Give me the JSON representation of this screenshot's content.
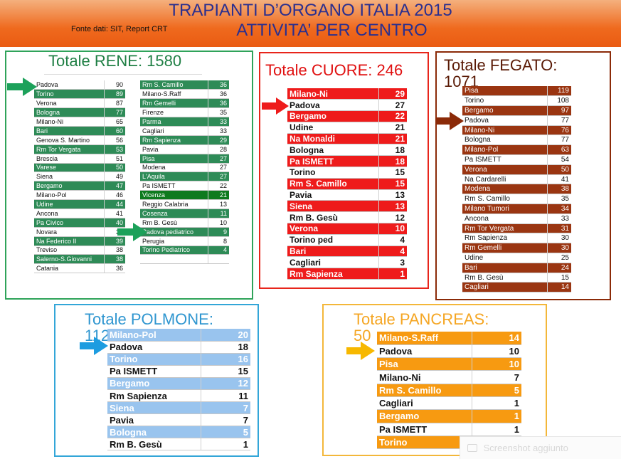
{
  "header": {
    "title_line1": "TRAPIANTI D’ORGANO ITALIA 2015",
    "title_line2": "ATTIVITA’ PER CENTRO",
    "source": "Fonte dati: SIT, Report CRT"
  },
  "colors": {
    "rene_frame": "#2fa35a",
    "rene_row": "#2e8b57",
    "cuore_frame": "#e8251b",
    "cuore_row": "#ee1b1b",
    "fegato_frame": "#8b2a08",
    "fegato_row": "#9a3511",
    "polmone_frame": "#33a6d8",
    "polmone_row": "#99c4ee",
    "pancreas_frame": "#f3b73a",
    "pancreas_row": "#f79a11"
  },
  "rene": {
    "title": "Totale RENE: 1580",
    "col1": [
      {
        "name": "Padova",
        "value": "90",
        "hl": false
      },
      {
        "name": "Torino",
        "value": "89",
        "hl": true
      },
      {
        "name": "Verona",
        "value": "87",
        "hl": false
      },
      {
        "name": "Bologna",
        "value": "77",
        "hl": true
      },
      {
        "name": "Milano-Ni",
        "value": "65",
        "hl": false
      },
      {
        "name": "Bari",
        "value": "60",
        "hl": true
      },
      {
        "name": "Genova S. Martino",
        "value": "56",
        "hl": false
      },
      {
        "name": "Rm Tor Vergata",
        "value": "53",
        "hl": true
      },
      {
        "name": "Brescia",
        "value": "51",
        "hl": false
      },
      {
        "name": "Varese",
        "value": "50",
        "hl": true
      },
      {
        "name": "Siena",
        "value": "49",
        "hl": false
      },
      {
        "name": "Bergamo",
        "value": "47",
        "hl": true
      },
      {
        "name": "Milano-Pol",
        "value": "46",
        "hl": false
      },
      {
        "name": "Udine",
        "value": "44",
        "hl": true
      },
      {
        "name": "Ancona",
        "value": "41",
        "hl": false
      },
      {
        "name": "Pa Civico",
        "value": "40",
        "hl": true
      },
      {
        "name": "Novara",
        "value": "39",
        "hl": false
      },
      {
        "name": "Na Federico II",
        "value": "39",
        "hl": true
      },
      {
        "name": "Treviso",
        "value": "38",
        "hl": false
      },
      {
        "name": "Salerno-S.Giovanni",
        "value": "38",
        "hl": true
      },
      {
        "name": "Catania",
        "value": "36",
        "hl": false
      }
    ],
    "col2": [
      {
        "name": "Rm S. Camillo",
        "value": "36",
        "hl": true
      },
      {
        "name": "Milano-S.Raff",
        "value": "36",
        "hl": false
      },
      {
        "name": "Rm Gemelli",
        "value": "36",
        "hl": true
      },
      {
        "name": "Firenze",
        "value": "35",
        "hl": false
      },
      {
        "name": "Parma",
        "value": "33",
        "hl": true
      },
      {
        "name": "Cagliari",
        "value": "33",
        "hl": false
      },
      {
        "name": "Rm Sapienza",
        "value": "29",
        "hl": true
      },
      {
        "name": "Pavia",
        "value": "28",
        "hl": false
      },
      {
        "name": "Pisa",
        "value": "27",
        "hl": true
      },
      {
        "name": "Modena",
        "value": "27",
        "hl": false
      },
      {
        "name": "L'Aquila",
        "value": "27",
        "hl": true
      },
      {
        "name": "Pa ISMETT",
        "value": "22",
        "hl": false
      },
      {
        "name": "Vicenza",
        "value": "21",
        "hl": true
      },
      {
        "name": "Reggio Calabria",
        "value": "13",
        "hl": false
      },
      {
        "name": "Cosenza",
        "value": "11",
        "hl": true
      },
      {
        "name": "Rm B. Gesù",
        "value": "10",
        "hl": false
      },
      {
        "name": "Padova pediatrico",
        "value": "9",
        "hl": true
      },
      {
        "name": "Perugia",
        "value": "8",
        "hl": false
      },
      {
        "name": "Torino Pediatrico",
        "value": "4",
        "hl": true
      },
      {
        "name": "",
        "value": "",
        "hl": false
      }
    ]
  },
  "cuore": {
    "title": "Totale CUORE: 246",
    "rows": [
      {
        "name": "Milano-Ni",
        "value": "29",
        "hl": true
      },
      {
        "name": "Padova",
        "value": "27",
        "hl": false
      },
      {
        "name": "Bergamo",
        "value": "22",
        "hl": true
      },
      {
        "name": "Udine",
        "value": "21",
        "hl": false
      },
      {
        "name": "Na Monaldi",
        "value": "21",
        "hl": true
      },
      {
        "name": "Bologna",
        "value": "18",
        "hl": false
      },
      {
        "name": "Pa ISMETT",
        "value": "18",
        "hl": true
      },
      {
        "name": "Torino",
        "value": "15",
        "hl": false
      },
      {
        "name": "Rm S. Camillo",
        "value": "15",
        "hl": true
      },
      {
        "name": "Pavia",
        "value": "13",
        "hl": false
      },
      {
        "name": "Siena",
        "value": "13",
        "hl": true
      },
      {
        "name": "Rm B. Gesù",
        "value": "12",
        "hl": false
      },
      {
        "name": "Verona",
        "value": "10",
        "hl": true
      },
      {
        "name": "Torino ped",
        "value": "4",
        "hl": false
      },
      {
        "name": "Bari",
        "value": "4",
        "hl": true
      },
      {
        "name": "Cagliari",
        "value": "3",
        "hl": false
      },
      {
        "name": "Rm Sapienza",
        "value": "1",
        "hl": true
      }
    ]
  },
  "fegato": {
    "title_line1": "Totale FEGATO:",
    "title_line2": "1071",
    "rows": [
      {
        "name": "Pisa",
        "value": "119",
        "hl": true
      },
      {
        "name": "Torino",
        "value": "108",
        "hl": false
      },
      {
        "name": "Bergamo",
        "value": "97",
        "hl": true
      },
      {
        "name": "Padova",
        "value": "77",
        "hl": false
      },
      {
        "name": "Milano-Ni",
        "value": "76",
        "hl": true
      },
      {
        "name": "Bologna",
        "value": "77",
        "hl": false
      },
      {
        "name": "Milano-Pol",
        "value": "63",
        "hl": true
      },
      {
        "name": "Pa ISMETT",
        "value": "54",
        "hl": false
      },
      {
        "name": "Verona",
        "value": "50",
        "hl": true
      },
      {
        "name": "Na Cardarelli",
        "value": "41",
        "hl": false
      },
      {
        "name": "Modena",
        "value": "38",
        "hl": true
      },
      {
        "name": "Rm S. Camillo",
        "value": "35",
        "hl": false
      },
      {
        "name": "Milano Tumori",
        "value": "34",
        "hl": true
      },
      {
        "name": "Ancona",
        "value": "33",
        "hl": false
      },
      {
        "name": "Rm Tor Vergata",
        "value": "31",
        "hl": true
      },
      {
        "name": "Rm Sapienza",
        "value": "30",
        "hl": false
      },
      {
        "name": "Rm Gemelli",
        "value": "30",
        "hl": true
      },
      {
        "name": "Udine",
        "value": "25",
        "hl": false
      },
      {
        "name": "Bari",
        "value": "24",
        "hl": true
      },
      {
        "name": "Rm B. Gesù",
        "value": "15",
        "hl": false
      },
      {
        "name": "Cagliari",
        "value": "14",
        "hl": true
      }
    ]
  },
  "polmone": {
    "title_line1": "Totale POLMONE:",
    "title_line2": "112",
    "rows": [
      {
        "name": "Milano-Pol",
        "value": "20",
        "hl": true
      },
      {
        "name": "Padova",
        "value": "18",
        "hl": false
      },
      {
        "name": "Torino",
        "value": "16",
        "hl": true
      },
      {
        "name": "Pa ISMETT",
        "value": "15",
        "hl": false
      },
      {
        "name": "Bergamo",
        "value": "12",
        "hl": true
      },
      {
        "name": "Rm Sapienza",
        "value": "11",
        "hl": false
      },
      {
        "name": "Siena",
        "value": "7",
        "hl": true
      },
      {
        "name": "Pavia",
        "value": "7",
        "hl": false
      },
      {
        "name": "Bologna",
        "value": "5",
        "hl": true
      },
      {
        "name": "Rm B. Gesù",
        "value": "1",
        "hl": false
      }
    ]
  },
  "pancreas": {
    "title_line1": "Totale PANCREAS:",
    "title_line2": "50",
    "rows": [
      {
        "name": "Milano-S.Raff",
        "value": "14",
        "hl": true
      },
      {
        "name": "Padova",
        "value": "10",
        "hl": false
      },
      {
        "name": "Pisa",
        "value": "10",
        "hl": true
      },
      {
        "name": "Milano-Ni",
        "value": "7",
        "hl": false
      },
      {
        "name": "Rm S. Camillo",
        "value": "5",
        "hl": true
      },
      {
        "name": "Cagliari",
        "value": "1",
        "hl": false
      },
      {
        "name": "Bergamo",
        "value": "1",
        "hl": true
      },
      {
        "name": "Pa ISMETT",
        "value": "1",
        "hl": false
      },
      {
        "name": "Torino",
        "value": "1",
        "hl": true
      }
    ]
  },
  "notification": {
    "text": "Screenshot aggiunto",
    "icon": "camera-icon"
  }
}
